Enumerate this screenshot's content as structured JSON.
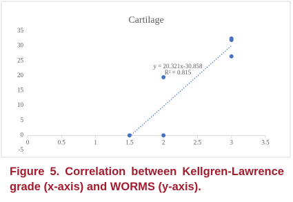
{
  "chart_data": {
    "type": "scatter",
    "title": "Cartilage",
    "x": [
      1.5,
      2,
      2,
      3,
      3,
      3
    ],
    "values": [
      0,
      0,
      19.5,
      32.5,
      32,
      26.5
    ],
    "color": "#4472c4",
    "xlim": [
      0,
      3.5
    ],
    "xticks": [
      0,
      0.5,
      1,
      1.5,
      2,
      2.5,
      3,
      3.5
    ],
    "ylim": [
      -5,
      35
    ],
    "yticks": [
      -5,
      0,
      5,
      10,
      15,
      20,
      25,
      30,
      35
    ],
    "trendline": {
      "slope": 20.321,
      "intercept": -30.858,
      "equation": "y = 20.321x-30.858",
      "r_squared": "R² = 0.815"
    }
  },
  "caption": "Figure 5. Correlation between Kellgren-Lawrence grade (x-axis) and WORMS (y-axis)."
}
